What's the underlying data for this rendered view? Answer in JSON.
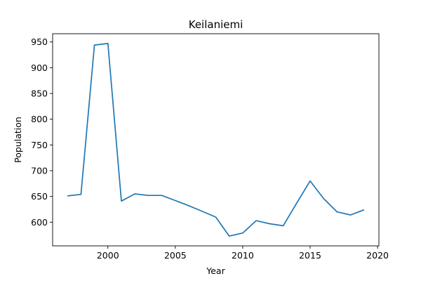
{
  "chart_data": {
    "type": "line",
    "title": "Keilaniemi",
    "xlabel": "Year",
    "ylabel": "Population",
    "xlim": [
      1995.9,
      2020.1
    ],
    "ylim": [
      554,
      966
    ],
    "xticks": [
      2000,
      2005,
      2010,
      2015,
      2020
    ],
    "yticks": [
      600,
      650,
      700,
      750,
      800,
      850,
      900,
      950
    ],
    "grid": false,
    "line_color": "#1f77b4",
    "x": [
      1997,
      1998,
      1999,
      2000,
      2001,
      2002,
      2003,
      2004,
      2005,
      2006,
      2007,
      2008,
      2009,
      2010,
      2011,
      2012,
      2013,
      2014,
      2015,
      2016,
      2017,
      2018,
      2019
    ],
    "y": [
      651,
      654,
      944,
      947,
      641,
      655,
      652,
      652,
      642,
      632,
      621,
      610,
      573,
      579,
      603,
      597,
      593,
      637,
      680,
      646,
      620,
      614,
      624
    ]
  }
}
